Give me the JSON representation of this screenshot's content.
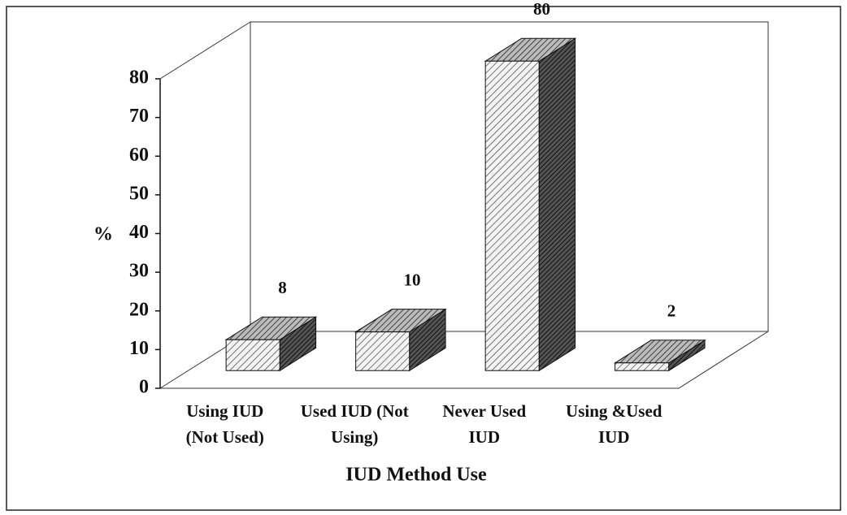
{
  "chart_data": {
    "type": "bar3d",
    "categories": [
      [
        "Using IUD",
        "(Not Used)"
      ],
      [
        "Used IUD (Not",
        "Using)"
      ],
      [
        "Never Used",
        "IUD"
      ],
      [
        "Using &Used",
        "IUD"
      ]
    ],
    "values": [
      8,
      10,
      80,
      2
    ],
    "ylim": [
      0,
      80
    ],
    "yticks": [
      0,
      10,
      20,
      30,
      40,
      50,
      60,
      70,
      80
    ],
    "ylabel": "%",
    "xlabel": "IUD Method Use",
    "grid": false
  }
}
